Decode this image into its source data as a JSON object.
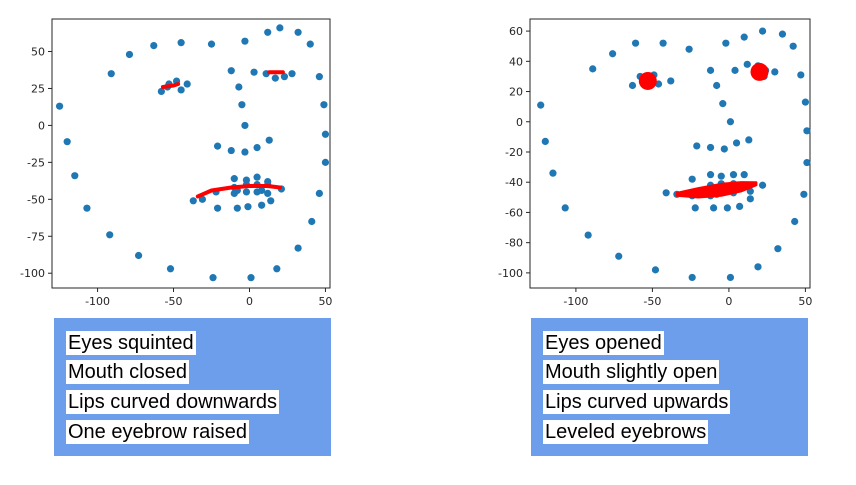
{
  "chart_data": [
    {
      "type": "scatter",
      "title": "",
      "xlabel": "",
      "ylabel": "",
      "xlim": [
        -130,
        53
      ],
      "ylim": [
        -110,
        72
      ],
      "xticks": [
        -100,
        -50,
        0,
        50
      ],
      "yticks": [
        50,
        25,
        0,
        -25,
        -50,
        -75,
        -100
      ],
      "point_color": "#1f77b4",
      "overlay_color": "#ff0000",
      "points": [
        [
          -125,
          13
        ],
        [
          -120,
          -11
        ],
        [
          -115,
          -34
        ],
        [
          -107,
          -56
        ],
        [
          -92,
          -74
        ],
        [
          -73,
          -88
        ],
        [
          -52,
          -97
        ],
        [
          -24,
          -103
        ],
        [
          1,
          -103
        ],
        [
          18,
          -97
        ],
        [
          32,
          -83
        ],
        [
          41,
          -65
        ],
        [
          46,
          -46
        ],
        [
          50,
          -25
        ],
        [
          50,
          -6
        ],
        [
          49,
          14
        ],
        [
          46,
          33
        ],
        [
          40,
          55
        ],
        [
          32,
          63
        ],
        [
          20,
          66
        ],
        [
          12,
          63
        ],
        [
          -3,
          57
        ],
        [
          -25,
          55
        ],
        [
          -45,
          56
        ],
        [
          -63,
          54
        ],
        [
          -79,
          48
        ],
        [
          -91,
          35
        ],
        [
          -58,
          23
        ],
        [
          -53,
          28
        ],
        [
          -48,
          30
        ],
        [
          -45,
          24
        ],
        [
          -41,
          28
        ],
        [
          -54,
          26
        ],
        [
          -12,
          37
        ],
        [
          -7,
          26
        ],
        [
          -5,
          14
        ],
        [
          -3,
          0
        ],
        [
          3,
          36
        ],
        [
          11,
          35
        ],
        [
          17,
          32
        ],
        [
          23,
          33
        ],
        [
          28,
          35
        ],
        [
          -21,
          -14
        ],
        [
          -12,
          -17
        ],
        [
          -3,
          -18
        ],
        [
          5,
          -15
        ],
        [
          13,
          -10
        ],
        [
          -37,
          -51
        ],
        [
          -31,
          -50
        ],
        [
          -22,
          -45
        ],
        [
          -10,
          -42
        ],
        [
          -2,
          -40
        ],
        [
          5,
          -40
        ],
        [
          12,
          -40
        ],
        [
          21,
          -43
        ],
        [
          -10,
          -36
        ],
        [
          -2,
          -37
        ],
        [
          5,
          -35
        ],
        [
          12,
          -38
        ],
        [
          -10,
          -46
        ],
        [
          -2,
          -45
        ],
        [
          5,
          -45
        ],
        [
          12,
          -46
        ],
        [
          -21,
          -56
        ],
        [
          -8,
          -56
        ],
        [
          -1,
          -55
        ],
        [
          8,
          -54
        ],
        [
          14,
          -51
        ],
        [
          8,
          -44
        ],
        [
          -8,
          -44
        ]
      ],
      "overlays": [
        {
          "kind": "line",
          "width": 4,
          "points": [
            [
              -57,
              26
            ],
            [
              -50,
              27
            ],
            [
              -47,
              28
            ]
          ]
        },
        {
          "kind": "line",
          "width": 4,
          "points": [
            [
              13,
              36
            ],
            [
              22,
              36
            ]
          ]
        },
        {
          "kind": "line",
          "width": 4,
          "points": [
            [
              -34,
              -48
            ],
            [
              -25,
              -44
            ],
            [
              -12,
              -42
            ],
            [
              0,
              -41
            ],
            [
              12,
              -41
            ],
            [
              20,
              -42
            ]
          ]
        }
      ]
    },
    {
      "type": "scatter",
      "title": "",
      "xlabel": "",
      "ylabel": "",
      "xlim": [
        -130,
        53
      ],
      "ylim": [
        -110,
        68
      ],
      "xticks": [
        -100,
        -50,
        0,
        50
      ],
      "yticks": [
        60,
        40,
        20,
        0,
        -20,
        -40,
        -60,
        -80,
        -100
      ],
      "point_color": "#1f77b4",
      "overlay_color": "#ff0000",
      "points": [
        [
          -123,
          11
        ],
        [
          -120,
          -13
        ],
        [
          -115,
          -34
        ],
        [
          -107,
          -57
        ],
        [
          -92,
          -75
        ],
        [
          -72,
          -89
        ],
        [
          -48,
          -98
        ],
        [
          -24,
          -103
        ],
        [
          1,
          -103
        ],
        [
          19,
          -96
        ],
        [
          32,
          -84
        ],
        [
          43,
          -66
        ],
        [
          49,
          -48
        ],
        [
          51,
          -27
        ],
        [
          51,
          -6
        ],
        [
          50,
          13
        ],
        [
          47,
          31
        ],
        [
          42,
          50
        ],
        [
          35,
          58
        ],
        [
          22,
          60
        ],
        [
          10,
          56
        ],
        [
          -2,
          52
        ],
        [
          -26,
          48
        ],
        [
          -43,
          52
        ],
        [
          -61,
          52
        ],
        [
          -76,
          45
        ],
        [
          -89,
          35
        ],
        [
          -63,
          24
        ],
        [
          -58,
          30
        ],
        [
          -49,
          31
        ],
        [
          -38,
          27
        ],
        [
          -46,
          25
        ],
        [
          -12,
          34
        ],
        [
          -8,
          24
        ],
        [
          -4,
          12
        ],
        [
          1,
          0
        ],
        [
          4,
          34
        ],
        [
          12,
          38
        ],
        [
          19,
          37
        ],
        [
          24,
          34
        ],
        [
          30,
          33
        ],
        [
          23,
          30
        ],
        [
          -21,
          -16
        ],
        [
          -12,
          -17
        ],
        [
          -3,
          -18
        ],
        [
          5,
          -14
        ],
        [
          13,
          -12
        ],
        [
          -41,
          -47
        ],
        [
          -34,
          -48
        ],
        [
          -24,
          -38
        ],
        [
          -12,
          -35
        ],
        [
          -5,
          -36
        ],
        [
          3,
          -35
        ],
        [
          10,
          -35
        ],
        [
          22,
          -42
        ],
        [
          -12,
          -42
        ],
        [
          -5,
          -41
        ],
        [
          3,
          -41
        ],
        [
          10,
          -42
        ],
        [
          -24,
          -49
        ],
        [
          -12,
          -49
        ],
        [
          -5,
          -47
        ],
        [
          3,
          -47
        ],
        [
          14,
          -46
        ],
        [
          -22,
          -57
        ],
        [
          -10,
          -57
        ],
        [
          -1,
          -57
        ],
        [
          7,
          -56
        ],
        [
          14,
          -51
        ],
        [
          -8,
          -48
        ]
      ],
      "overlays": [
        {
          "kind": "dot",
          "r": 9,
          "points": [
            [
              -53,
              27
            ]
          ]
        },
        {
          "kind": "dot",
          "r": 9,
          "points": [
            [
              20,
              33
            ]
          ]
        },
        {
          "kind": "band",
          "points": [
            [
              -34,
              -48
            ],
            [
              -20,
              -47
            ],
            [
              -5,
              -45
            ],
            [
              8,
              -43
            ],
            [
              18,
              -41
            ]
          ]
        }
      ]
    }
  ],
  "captions": [
    {
      "lines": [
        "Eyes squinted",
        "Mouth closed",
        "Lips curved downwards",
        "One eyebrow raised"
      ]
    },
    {
      "lines": [
        "Eyes opened",
        "Mouth slightly open",
        "Lips curved upwards",
        "Leveled eyebrows"
      ]
    }
  ]
}
